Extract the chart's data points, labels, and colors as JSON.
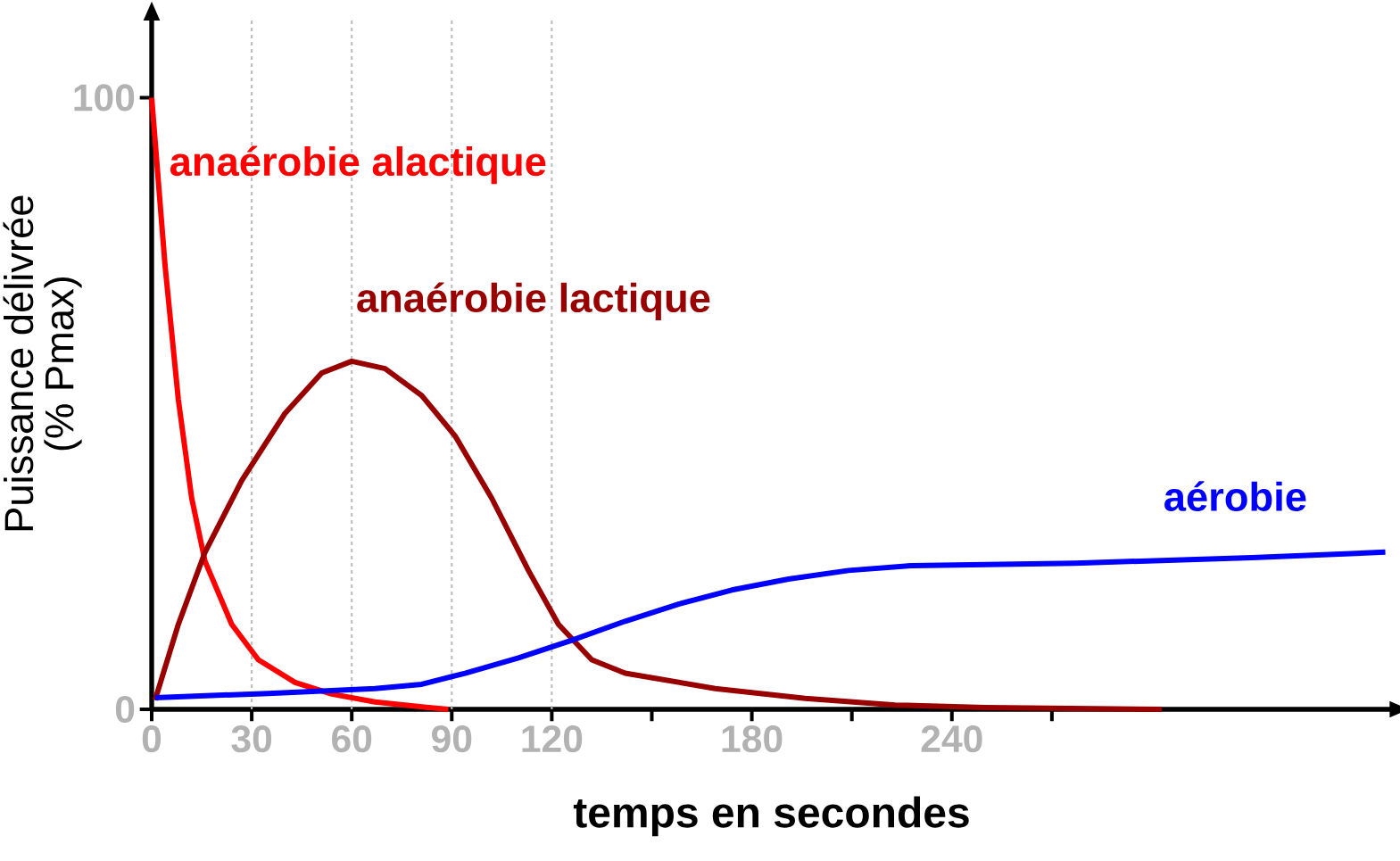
{
  "chart_data": {
    "type": "line",
    "xlabel": "temps en secondes",
    "ylabel": "Puissance délivrée\n(% Pmax)",
    "xlim": [
      0,
      372
    ],
    "ylim": [
      0,
      113
    ],
    "xticks": [
      0,
      30,
      60,
      90,
      120,
      {
        "value": 150,
        "label": null
      },
      180,
      {
        "value": 210,
        "label": null
      },
      240,
      {
        "value": 270,
        "label": null
      }
    ],
    "yticks": [
      0,
      100
    ],
    "grid": false,
    "marker": "none",
    "line_style": "solid",
    "ref_lines": [
      {
        "axis": "x",
        "value": 30,
        "line_style": "dashed",
        "color": "#bbbbbb"
      },
      {
        "axis": "x",
        "value": 60,
        "line_style": "dashed",
        "color": "#bbbbbb"
      },
      {
        "axis": "x",
        "value": 90,
        "line_style": "dashed",
        "color": "#bbbbbb"
      },
      {
        "axis": "x",
        "value": 120,
        "line_style": "dashed",
        "color": "#bbbbbb"
      }
    ],
    "series": [
      {
        "name": "anaérobie alactique",
        "color": "#ff0000",
        "x": [
          0,
          4,
          8,
          12,
          16,
          24,
          32,
          43,
          54,
          67,
          83,
          89
        ],
        "values": [
          100,
          72.6,
          50.6,
          34.5,
          24.2,
          13.9,
          8.1,
          4.4,
          2.5,
          1.2,
          0.3,
          0
        ]
      },
      {
        "name": "anaérobie lactique",
        "color": "#990000",
        "x": [
          1,
          8,
          16,
          27,
          40,
          51,
          60,
          70,
          81,
          91,
          102,
          113,
          122,
          132,
          142,
          169,
          196,
          223,
          250,
          303
        ],
        "values": [
          1.5,
          13.9,
          25.7,
          37.4,
          48.4,
          55,
          56.9,
          55.7,
          51.3,
          44.7,
          34.5,
          22.7,
          13.9,
          8.1,
          5.9,
          3.4,
          1.8,
          0.7,
          0.3,
          0
        ]
      },
      {
        "name": "aérobie",
        "color": "#0000ff",
        "x": [
          1,
          35,
          67,
          81,
          94,
          110,
          126,
          142,
          158,
          174,
          191,
          209,
          228,
          277,
          330,
          370
        ],
        "values": [
          1.9,
          2.6,
          3.4,
          4.1,
          5.9,
          8.4,
          11.3,
          14.4,
          17.2,
          19.5,
          21.3,
          22.7,
          23.5,
          23.9,
          24.8,
          25.7
        ]
      }
    ]
  }
}
